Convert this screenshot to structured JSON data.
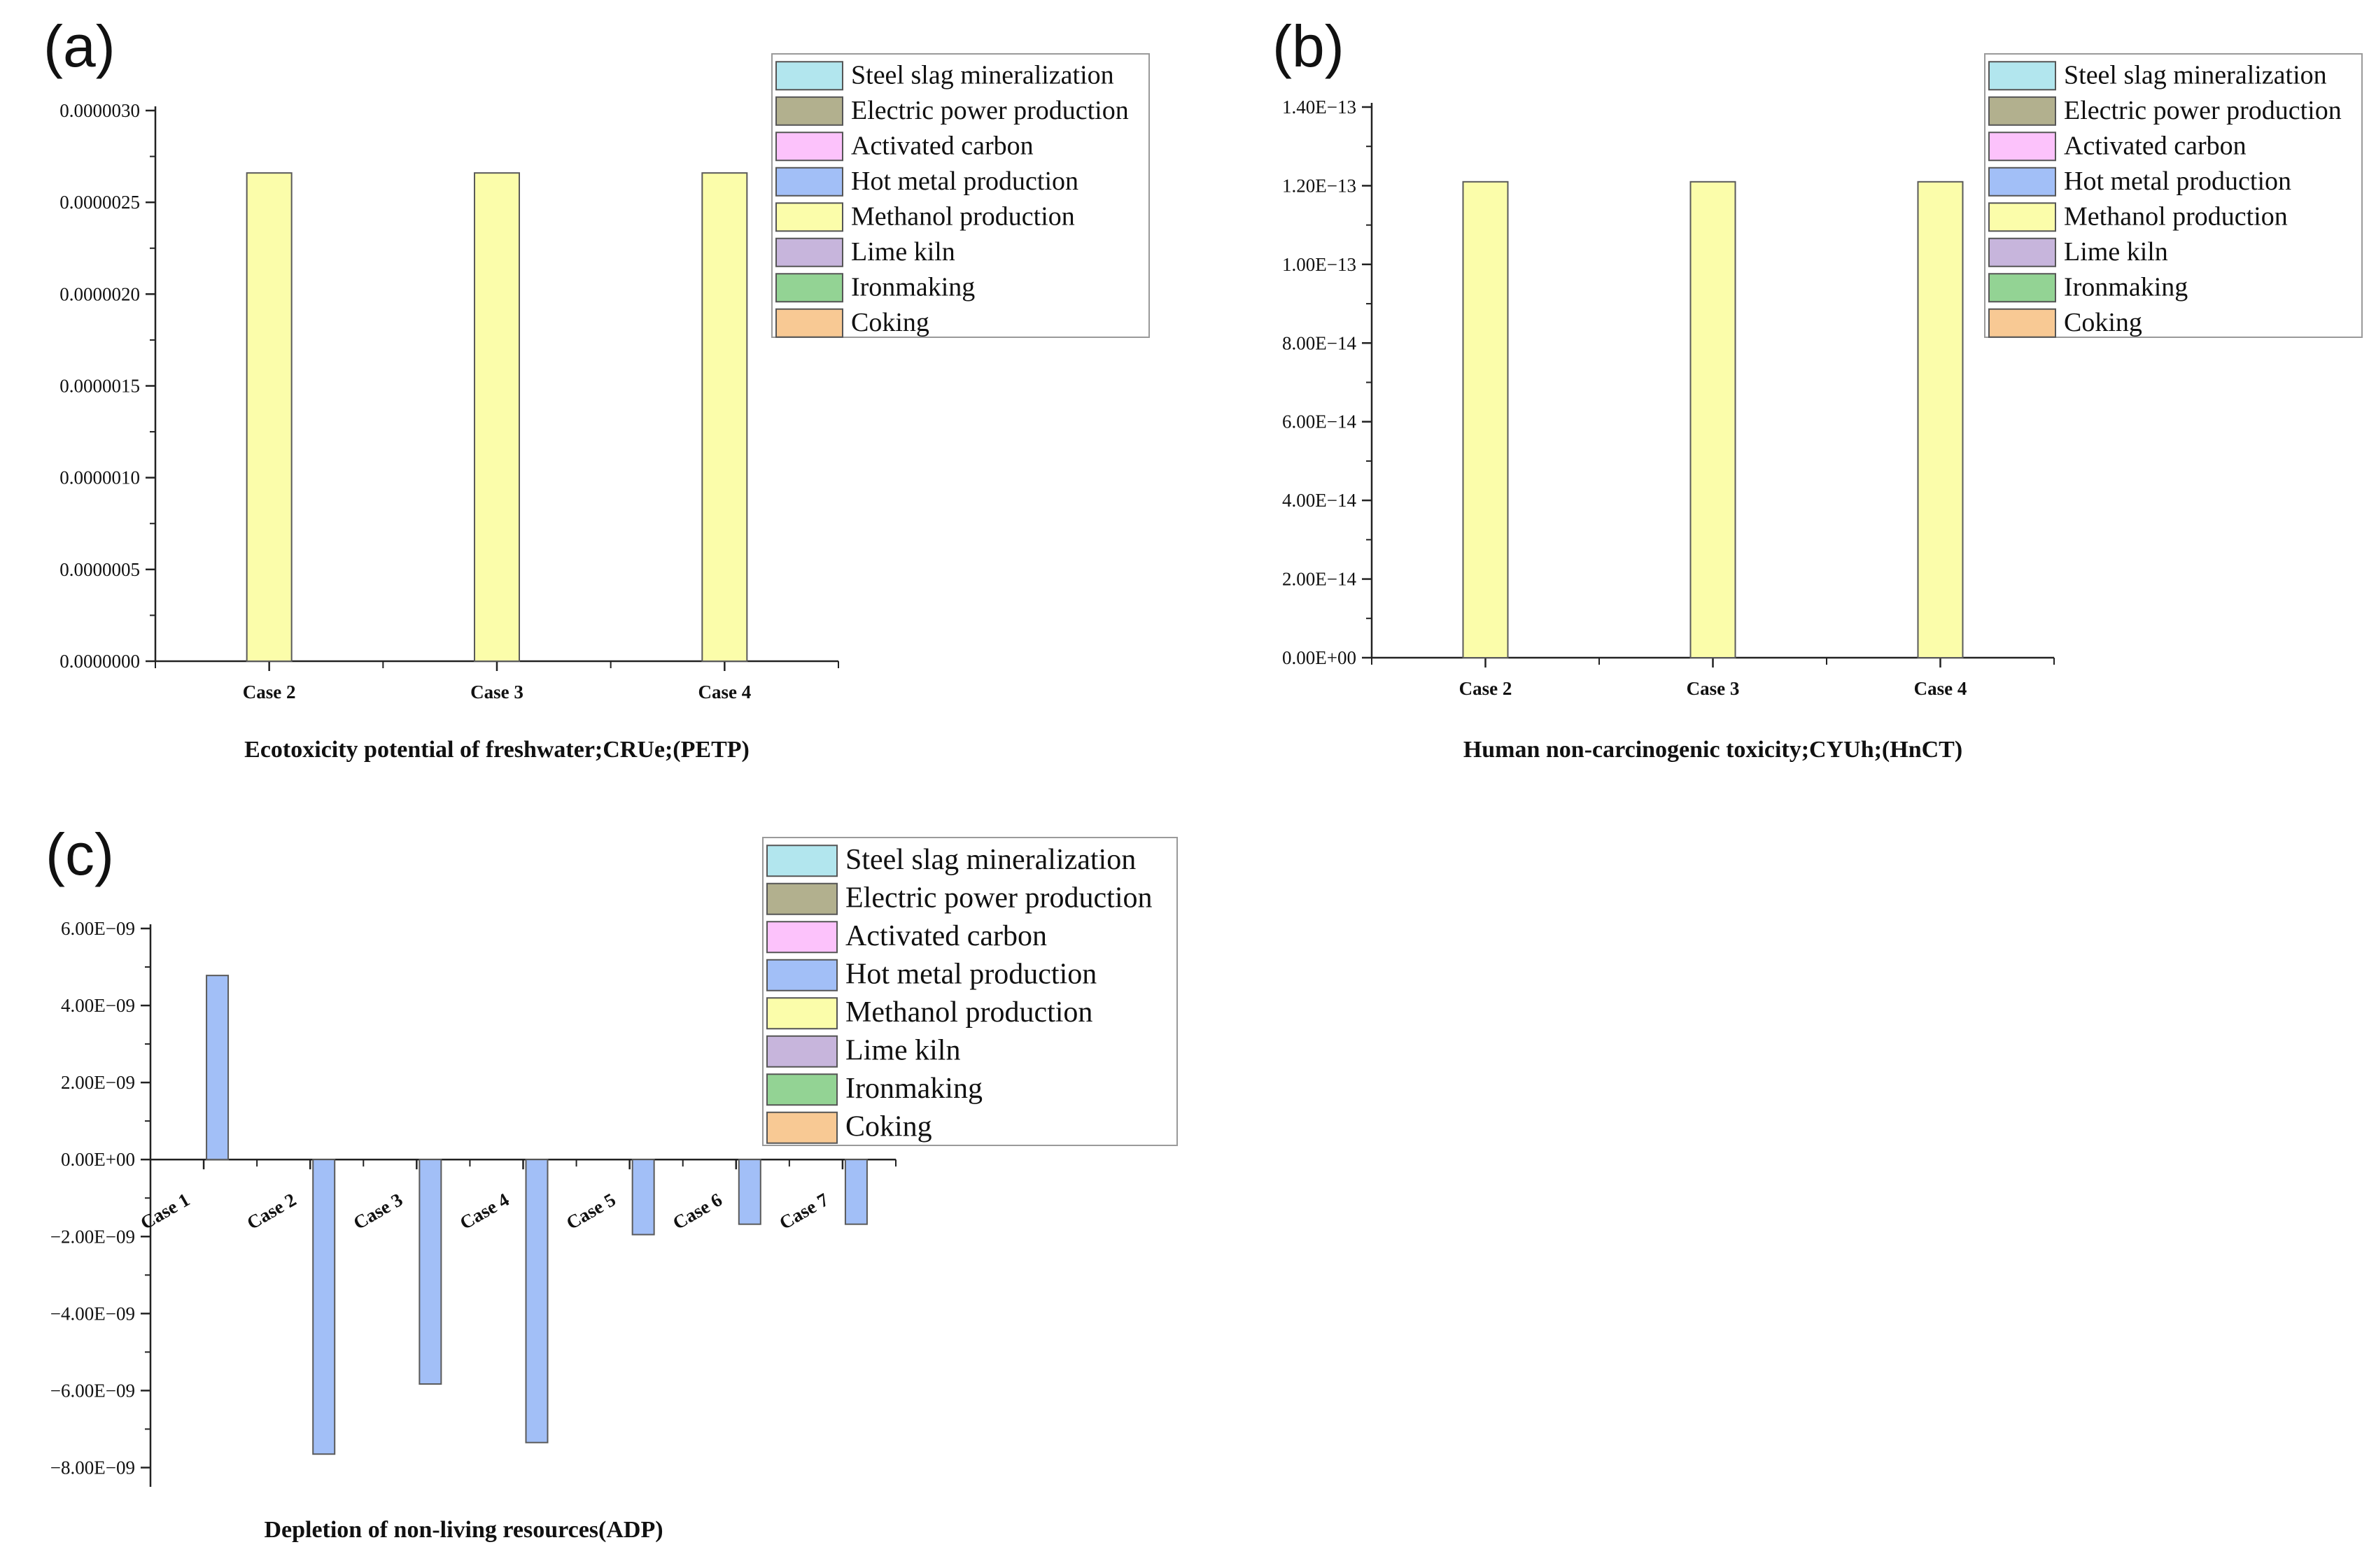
{
  "legend_items": [
    {
      "name": "Steel slag mineralization",
      "color": "#b2e6ee"
    },
    {
      "name": "Electric power production",
      "color": "#b2b08e"
    },
    {
      "name": "Activated carbon",
      "color": "#fcc2fb"
    },
    {
      "name": "Hot metal production",
      "color": "#a2bff7"
    },
    {
      "name": "Methanol production",
      "color": "#fbfdaa"
    },
    {
      "name": "Lime kiln",
      "color": "#c7b5dc"
    },
    {
      "name": "Ironmaking",
      "color": "#93d394"
    },
    {
      "name": "Coking",
      "color": "#f8c994"
    }
  ],
  "chart_data": [
    {
      "id": "a",
      "panel_label": "(a)",
      "type": "bar",
      "title": "",
      "xlabel": "Ecotoxicity potential of freshwater;CRUe;(PETP)",
      "ylabel": "",
      "categories": [
        "Case 2",
        "Case 3",
        "Case 4"
      ],
      "ylim": [
        0,
        3e-06
      ],
      "yticks": [
        "0.0000000",
        "0.0000005",
        "0.0000010",
        "0.0000015",
        "0.0000020",
        "0.0000025",
        "0.0000030"
      ],
      "ytick_values": [
        0,
        5e-07,
        1e-06,
        1.5e-06,
        2e-06,
        2.5e-06,
        3e-06
      ],
      "series": [
        {
          "name": "Methanol production",
          "values": [
            2.66e-06,
            2.66e-06,
            2.66e-06
          ]
        }
      ],
      "legend_position": "top-right"
    },
    {
      "id": "b",
      "panel_label": "(b)",
      "type": "bar",
      "title": "",
      "xlabel": "Human non-carcinogenic toxicity;CYUh;(HnCT)",
      "ylabel": "",
      "categories": [
        "Case 2",
        "Case 3",
        "Case 4"
      ],
      "ylim": [
        0,
        1.4e-13
      ],
      "yticks": [
        "0.00E+00",
        "2.00E−14",
        "4.00E−14",
        "6.00E−14",
        "8.00E−14",
        "1.00E−13",
        "1.20E−13",
        "1.40E−13"
      ],
      "ytick_values": [
        0,
        2e-14,
        4e-14,
        6e-14,
        8e-14,
        1e-13,
        1.2e-13,
        1.4e-13
      ],
      "series": [
        {
          "name": "Methanol production",
          "values": [
            1.21e-13,
            1.21e-13,
            1.21e-13
          ]
        }
      ],
      "legend_position": "top-right"
    },
    {
      "id": "c",
      "panel_label": "(c)",
      "type": "bar",
      "title": "",
      "xlabel": "Depletion of non-living resources(ADP)",
      "ylabel": "",
      "categories": [
        "Case 1",
        "Case 2",
        "Case 3",
        "Case 4",
        "Case 5",
        "Case 6",
        "Case 7"
      ],
      "ylim": [
        -8.5e-09,
        6e-09
      ],
      "yticks": [
        "−8.00E−09",
        "−6.00E−09",
        "−4.00E−09",
        "−2.00E−09",
        "0.00E+00",
        "2.00E−09",
        "4.00E−09",
        "6.00E−09"
      ],
      "ytick_values": [
        -8e-09,
        -6e-09,
        -4e-09,
        -2e-09,
        0,
        2e-09,
        4e-09,
        6e-09
      ],
      "series": [
        {
          "name": "Hot metal production",
          "values": [
            4.78e-09,
            -7.65e-09,
            -5.83e-09,
            -7.35e-09,
            -1.95e-09,
            -1.68e-09,
            -1.68e-09
          ]
        }
      ],
      "legend_position": "top-right"
    }
  ]
}
